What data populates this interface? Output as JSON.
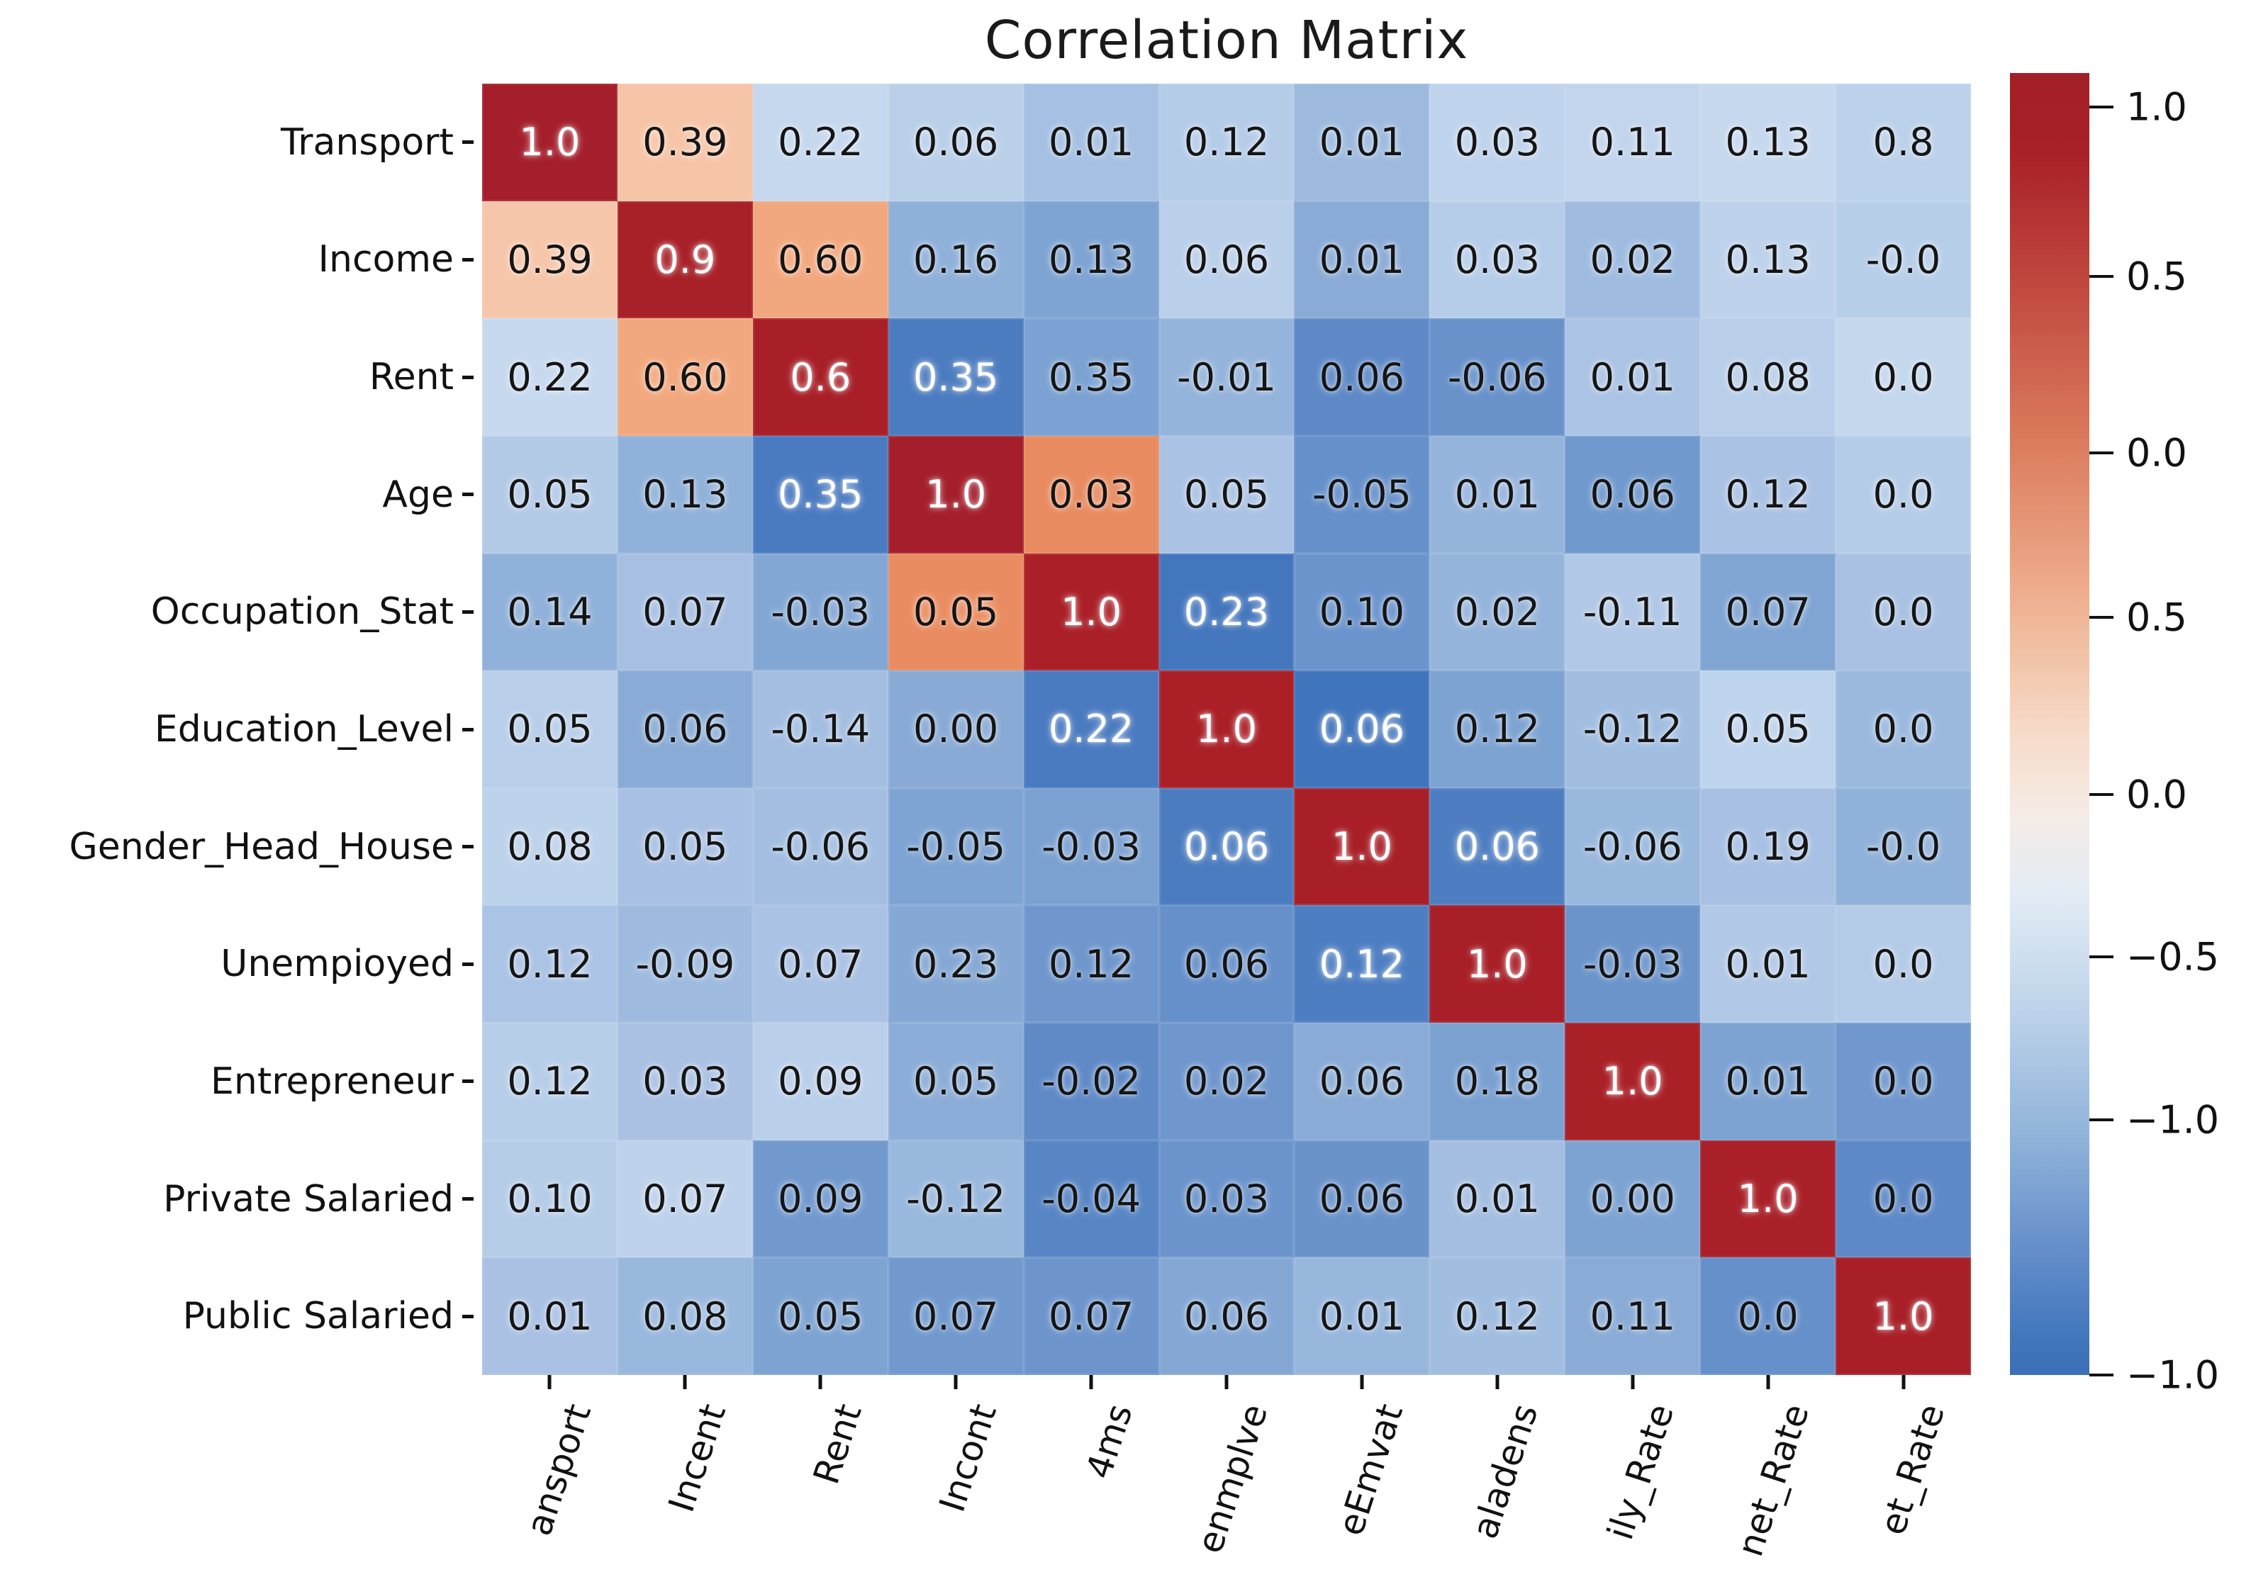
{
  "page": {
    "background": "#ffffff"
  },
  "chart_data": {
    "type": "heatmap",
    "title": "Correlation Matrix",
    "legend_position": "right-colorbar",
    "grid": false,
    "row_labels": [
      "Transport",
      "Income",
      "Rent",
      "Age",
      "Occupation_Stat",
      "Education_Level",
      "Gender_Head_House",
      "Unempioyed",
      "Entrepreneur",
      "Private Salaried",
      "Public Salaried"
    ],
    "col_labels": [
      "ansport",
      "Incent",
      "Rent",
      "Incont",
      "4ms",
      "enmplve",
      "eEmvat",
      "aladens",
      "ily_Rate",
      "net_Rate",
      "et_Rate"
    ],
    "values": [
      [
        "1.0",
        "0.39",
        "0.22",
        "0.06",
        "0.01",
        "0.12",
        "0.01",
        "0.03",
        "0.11",
        "0.13",
        "0.8"
      ],
      [
        "0.39",
        "0.9",
        "0.60",
        "0.16",
        "0.13",
        "0.06",
        "0.01",
        "0.03",
        "0.02",
        "0.13",
        "-0.0"
      ],
      [
        "0.22",
        "0.60",
        "0.6",
        "0.35",
        "0.35",
        "-0.01",
        "0.06",
        "-0.06",
        "0.01",
        "0.08",
        "0.0"
      ],
      [
        "0.05",
        "0.13",
        "0.35",
        "1.0",
        "0.03",
        "0.05",
        "-0.05",
        "0.01",
        "0.06",
        "0.12",
        "0.0"
      ],
      [
        "0.14",
        "0.07",
        "-0.03",
        "0.05",
        "1.0",
        "0.23",
        "0.10",
        "0.02",
        "-0.11",
        "0.07",
        "0.0"
      ],
      [
        "0.05",
        "0.06",
        "-0.14",
        "0.00",
        "0.22",
        "1.0",
        "0.06",
        "0.12",
        "-0.12",
        "0.05",
        "0.0"
      ],
      [
        "0.08",
        "0.05",
        "-0.06",
        "-0.05",
        "-0.03",
        "0.06",
        "1.0",
        "0.06",
        "-0.06",
        "0.19",
        "-0.0"
      ],
      [
        "0.12",
        "-0.09",
        "0.07",
        "0.23",
        "0.12",
        "0.06",
        "0.12",
        "1.0",
        "-0.03",
        "0.01",
        "0.0"
      ],
      [
        "0.12",
        "0.03",
        "0.09",
        "0.05",
        "-0.02",
        "0.02",
        "0.06",
        "0.18",
        "1.0",
        "0.01",
        "0.0"
      ],
      [
        "0.10",
        "0.07",
        "0.09",
        "-0.12",
        "-0.04",
        "0.03",
        "0.06",
        "0.01",
        "0.00",
        "1.0",
        "0.0"
      ],
      [
        "0.01",
        "0.08",
        "0.05",
        "0.07",
        "0.07",
        "0.06",
        "0.01",
        "0.12",
        "0.11",
        "0.0",
        "1.0"
      ]
    ],
    "cell_colors": [
      [
        "#a41f2b",
        "#f6c5a8",
        "#c6d8ee",
        "#bad0e9",
        "#a5c0e2",
        "#b5cce8",
        "#9dbade",
        "#bfd3ec",
        "#c2d5ed",
        "#c6d8ee",
        "#bcd1ea"
      ],
      [
        "#f6c6aa",
        "#a82028",
        "#f2a87e",
        "#8fb0d9",
        "#7ea4d3",
        "#bacfe9",
        "#8aabd6",
        "#b6cde9",
        "#9fbce0",
        "#bed2eb",
        "#b7cee9"
      ],
      [
        "#c7d9ee",
        "#f2a87e",
        "#a81f27",
        "#4c7cc0",
        "#7ba2d2",
        "#95b4db",
        "#5e89c6",
        "#6992ca",
        "#abc3e4",
        "#b9cfe9",
        "#c4d7ed"
      ],
      [
        "#b3cae7",
        "#90b1d9",
        "#4a7ac0",
        "#a41f2b",
        "#e88b60",
        "#aac2e4",
        "#6690ca",
        "#95b4dc",
        "#7099ce",
        "#aac2e4",
        "#b5cce8"
      ],
      [
        "#90b1d9",
        "#a6bfe2",
        "#83a7d4",
        "#e98c61",
        "#ab2028",
        "#4376bd",
        "#6b94cc",
        "#95b4db",
        "#b1c8e6",
        "#80a5d3",
        "#a9c1e3"
      ],
      [
        "#b8cee9",
        "#89abd6",
        "#a4bee1",
        "#88aad5",
        "#4a7ac0",
        "#ab1f27",
        "#4074bc",
        "#7da3d2",
        "#a1bde0",
        "#bed3ec",
        "#9bb9de"
      ],
      [
        "#bdd2eb",
        "#a8c0e3",
        "#a3bee1",
        "#7ea4d3",
        "#7ba1d1",
        "#4c7cc0",
        "#a81f27",
        "#4e7ec1",
        "#99b8dd",
        "#a8c0e3",
        "#90b1d9"
      ],
      [
        "#abc3e4",
        "#9ebbdf",
        "#aac2e4",
        "#85a8d4",
        "#6f97cd",
        "#6690ca",
        "#4e7ec2",
        "#a81f27",
        "#6b94cb",
        "#b1c8e6",
        "#b4cbe7"
      ],
      [
        "#b7cee9",
        "#aac1e3",
        "#bacfea",
        "#8cadd7",
        "#5f8ac6",
        "#6f96cd",
        "#89abd6",
        "#7ba1d1",
        "#aa2027",
        "#7da3d2",
        "#7097ce"
      ],
      [
        "#b6cde8",
        "#bed2eb",
        "#7199ce",
        "#99b8dd",
        "#5886c5",
        "#6b94cc",
        "#6a93ca",
        "#a4bee1",
        "#7da3d2",
        "#a92028",
        "#5e89c7"
      ],
      [
        "#aac1e3",
        "#99b8dd",
        "#7da3d2",
        "#7199ce",
        "#6d95cc",
        "#84a7d4",
        "#97b6dc",
        "#a1bde0",
        "#89abd6",
        "#6690ca",
        "#a81f27"
      ]
    ],
    "white_text_cells": [
      [
        0,
        0
      ],
      [
        1,
        1
      ],
      [
        2,
        2
      ],
      [
        3,
        3
      ],
      [
        4,
        4
      ],
      [
        5,
        5
      ],
      [
        6,
        6
      ],
      [
        7,
        7
      ],
      [
        8,
        8
      ],
      [
        9,
        9
      ],
      [
        10,
        10
      ],
      [
        2,
        3
      ],
      [
        3,
        2
      ],
      [
        4,
        5
      ],
      [
        5,
        4
      ],
      [
        5,
        6
      ],
      [
        6,
        5
      ],
      [
        6,
        7
      ],
      [
        7,
        6
      ]
    ],
    "text_color_dark": "#151515",
    "text_color_light": "#ffffff",
    "axis_label_color": "#111111",
    "colorbar": {
      "tick_labels": [
        "1.0",
        "0.5",
        "0.0",
        "0.5",
        "0.0",
        "−0.5",
        "−1.0",
        "−1.0"
      ],
      "gradient_stops": [
        {
          "color": "#a21f28",
          "pos": 0
        },
        {
          "color": "#a82028",
          "pos": 6
        },
        {
          "color": "#c0473e",
          "pos": 16
        },
        {
          "color": "#da7a5c",
          "pos": 28
        },
        {
          "color": "#eeae8d",
          "pos": 40
        },
        {
          "color": "#f6d9c5",
          "pos": 50
        },
        {
          "color": "#f5ece6",
          "pos": 57
        },
        {
          "color": "#e3ecf5",
          "pos": 63
        },
        {
          "color": "#bdd3ea",
          "pos": 72
        },
        {
          "color": "#8fb2d9",
          "pos": 82
        },
        {
          "color": "#6690ca",
          "pos": 90
        },
        {
          "color": "#4377bd",
          "pos": 97
        },
        {
          "color": "#3b6fb5",
          "pos": 100
        }
      ]
    }
  }
}
